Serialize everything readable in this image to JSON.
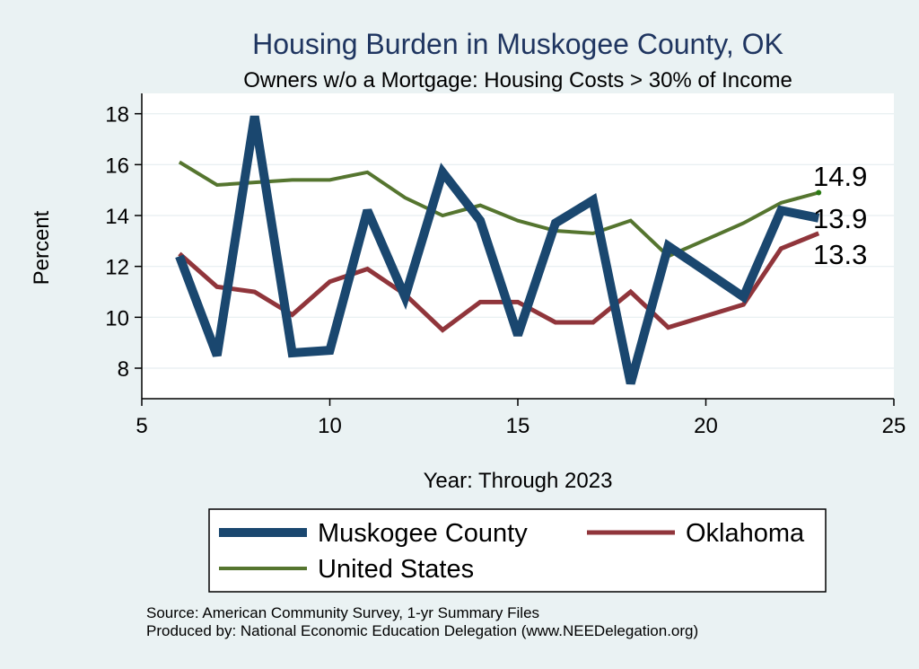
{
  "chart_data": {
    "type": "line",
    "title": "Housing Burden in Muskogee County, OK",
    "subtitle": "Owners w/o a Mortgage: Housing Costs > 30% of Income",
    "xlabel": "Year: Through 2023",
    "ylabel": "Percent",
    "xlim": [
      5,
      25
    ],
    "ylim": [
      6.8,
      18.8
    ],
    "xticks": [
      5,
      10,
      15,
      20,
      25
    ],
    "yticks": [
      8,
      10,
      12,
      14,
      16,
      18
    ],
    "grid": true,
    "legend_position": "bottom",
    "series": [
      {
        "name": "Muskogee County",
        "color": "#1a476f",
        "x": [
          6,
          7,
          8,
          9,
          10,
          11,
          12,
          13,
          14,
          15,
          16,
          17,
          18,
          19,
          21,
          22,
          23
        ],
        "values": [
          12.4,
          8.5,
          17.9,
          8.6,
          8.7,
          14.2,
          10.8,
          15.7,
          13.8,
          9.3,
          13.7,
          14.6,
          7.4,
          12.8,
          10.8,
          14.2,
          13.9
        ],
        "end_label": "13.9"
      },
      {
        "name": "Oklahoma",
        "color": "#90353b",
        "x": [
          6,
          7,
          8,
          9,
          10,
          11,
          12,
          13,
          14,
          15,
          16,
          17,
          18,
          19,
          21,
          22,
          23
        ],
        "values": [
          12.5,
          11.2,
          11.0,
          10.1,
          11.4,
          11.9,
          10.9,
          9.5,
          10.6,
          10.6,
          9.8,
          9.8,
          11.0,
          9.6,
          10.5,
          12.7,
          13.3
        ],
        "end_label": "13.3"
      },
      {
        "name": "United States",
        "color": "#55752f",
        "x": [
          6,
          7,
          8,
          9,
          10,
          11,
          12,
          13,
          14,
          15,
          16,
          17,
          18,
          19,
          21,
          22,
          23
        ],
        "values": [
          16.1,
          15.2,
          15.3,
          15.4,
          15.4,
          15.7,
          14.7,
          14.0,
          14.4,
          13.8,
          13.4,
          13.3,
          13.8,
          12.4,
          13.7,
          14.5,
          14.9
        ],
        "end_label": "14.9"
      }
    ],
    "notes": [
      "Source: American Community Survey, 1-yr Summary Files",
      "Produced by: National Economic Education Delegation (www.NEEDelegation.org)"
    ]
  }
}
